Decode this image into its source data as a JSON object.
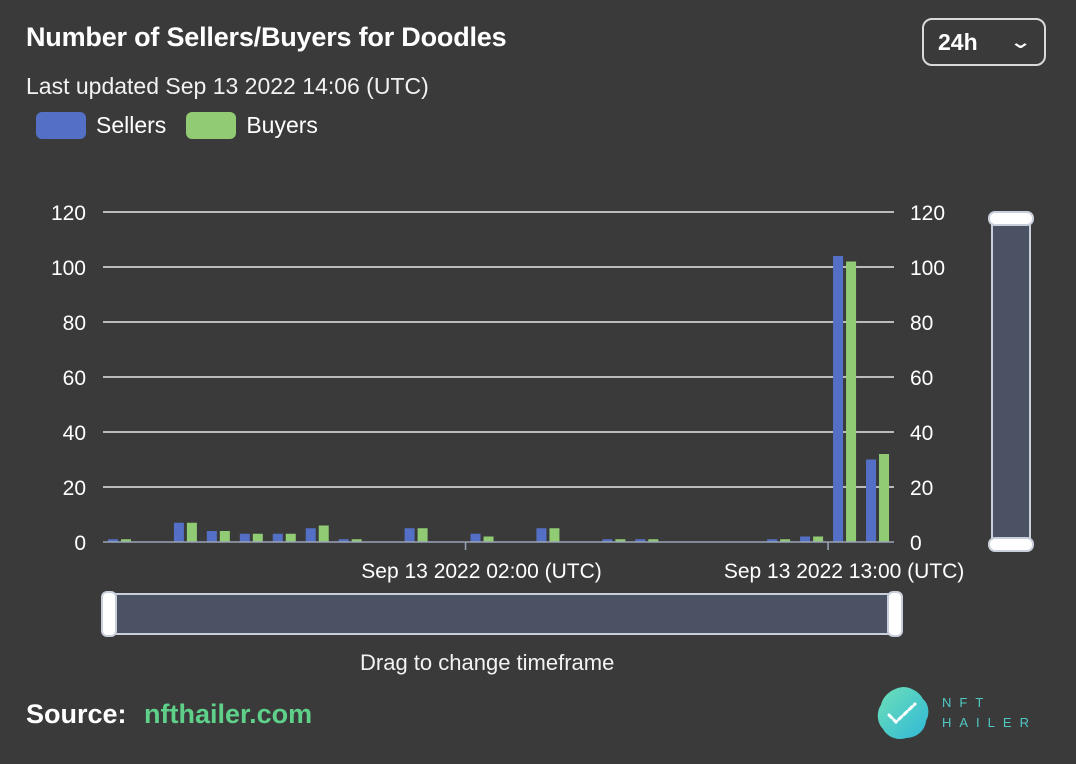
{
  "header": {
    "title": "Number of Sellers/Buyers for Doodles",
    "subtitle": "Last updated Sep 13 2022 14:06 (UTC)"
  },
  "range_select": {
    "value": "24h"
  },
  "legend": [
    {
      "label": "Sellers",
      "color": "#5470c6"
    },
    {
      "label": "Buyers",
      "color": "#91cc75"
    }
  ],
  "drag_hint": "Drag to change timeframe",
  "source": {
    "label": "Source:",
    "link": "nfthailer.com",
    "link_color": "#5fd08a"
  },
  "logo": {
    "line1": "NFT",
    "line2": "HAILER"
  },
  "chart_data": {
    "type": "bar",
    "title": "Number of Sellers/Buyers for Doodles",
    "subtitle": "Last updated Sep 13 2022 14:06 (UTC)",
    "x_tick_labels": [
      "Sep 13 2022 02:00 (UTC)",
      "Sep 13 2022 13:00 (UTC)"
    ],
    "x_tick_label_index": [
      11,
      22
    ],
    "ylim": [
      0,
      120
    ],
    "yticks": [
      0,
      20,
      40,
      60,
      80,
      100,
      120
    ],
    "grid": true,
    "legend_position": "top-left",
    "series": [
      {
        "name": "Sellers",
        "color": "#5470c6",
        "values": [
          1,
          0,
          7,
          4,
          3,
          3,
          5,
          1,
          0,
          5,
          0,
          3,
          0,
          5,
          0,
          1,
          1,
          0,
          0,
          0,
          1,
          2,
          104,
          30
        ]
      },
      {
        "name": "Buyers",
        "color": "#91cc75",
        "values": [
          1,
          0,
          7,
          4,
          3,
          3,
          6,
          1,
          0,
          5,
          0,
          2,
          0,
          5,
          0,
          1,
          1,
          0,
          0,
          0,
          1,
          2,
          102,
          32
        ]
      }
    ]
  }
}
